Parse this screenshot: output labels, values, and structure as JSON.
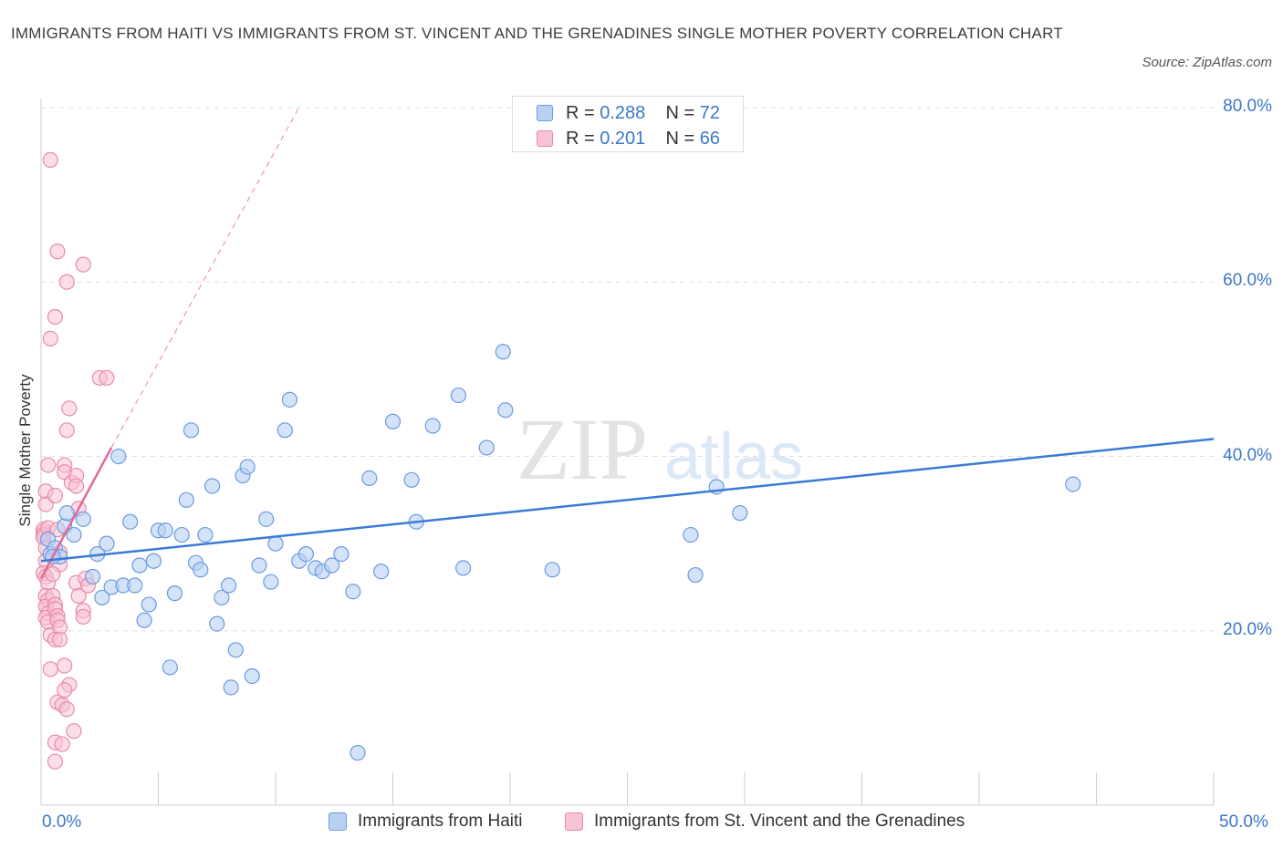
{
  "title": "IMMIGRANTS FROM HAITI VS IMMIGRANTS FROM ST. VINCENT AND THE GRENADINES SINGLE MOTHER POVERTY CORRELATION CHART",
  "source": "Source: ZipAtlas.com",
  "watermark": {
    "zip": "ZIP",
    "atlas": "atlas"
  },
  "colors": {
    "haiti_fill": "#b8d1f3",
    "haiti_stroke": "#6a9be0",
    "haiti_line": "#3a7bd5",
    "svg_fill": "#f8c3d3",
    "svg_stroke": "#ea8aa9",
    "svg_line": "#e26a97",
    "grid": "#dedede",
    "tick_text": "#3b78c9"
  },
  "legend": {
    "rows": [
      {
        "r_label": "R = ",
        "r_value": "0.288",
        "n_label": "N = ",
        "n_value": "72"
      },
      {
        "r_label": "R = ",
        "r_value": "0.201",
        "n_label": "N = ",
        "n_value": "66"
      }
    ]
  },
  "bottom_legend": [
    "Immigrants from Haiti",
    "Immigrants from St. Vincent and the Grenadines"
  ],
  "chart_data": {
    "type": "scatter",
    "title": "IMMIGRANTS FROM HAITI VS IMMIGRANTS FROM ST. VINCENT AND THE GRENADINES SINGLE MOTHER POVERTY CORRELATION CHART",
    "xlabel": "",
    "ylabel": "Single Mother Poverty",
    "xlim": [
      0,
      50
    ],
    "ylim": [
      0,
      80
    ],
    "x_tick_labels": [
      "0.0%",
      "50.0%"
    ],
    "y_ticks": [
      20,
      40,
      60,
      80
    ],
    "y_tick_labels": [
      "20.0%",
      "40.0%",
      "60.0%",
      "80.0%"
    ],
    "grid": true,
    "legend_position": "top-center",
    "series": [
      {
        "name": "Immigrants from Haiti",
        "R": 0.288,
        "N": 72,
        "trend": {
          "x": [
            0,
            50
          ],
          "y": [
            28.0,
            42.0
          ]
        },
        "points": [
          [
            0.3,
            30.5
          ],
          [
            0.4,
            28.8
          ],
          [
            0.6,
            29.5
          ],
          [
            0.8,
            28.5
          ],
          [
            1.0,
            32.0
          ],
          [
            1.1,
            33.5
          ],
          [
            1.4,
            31.0
          ],
          [
            1.8,
            32.8
          ],
          [
            2.2,
            26.2
          ],
          [
            2.4,
            28.8
          ],
          [
            2.6,
            23.8
          ],
          [
            2.8,
            30.0
          ],
          [
            3.0,
            25.0
          ],
          [
            3.3,
            40.0
          ],
          [
            3.5,
            25.2
          ],
          [
            3.8,
            32.5
          ],
          [
            4.0,
            25.2
          ],
          [
            4.2,
            27.5
          ],
          [
            4.4,
            21.2
          ],
          [
            4.6,
            23.0
          ],
          [
            4.8,
            28.0
          ],
          [
            5.0,
            31.5
          ],
          [
            5.3,
            31.5
          ],
          [
            5.5,
            15.8
          ],
          [
            5.7,
            24.3
          ],
          [
            6.0,
            31.0
          ],
          [
            6.2,
            35.0
          ],
          [
            6.4,
            43.0
          ],
          [
            6.6,
            27.8
          ],
          [
            6.8,
            27.0
          ],
          [
            7.0,
            31.0
          ],
          [
            7.3,
            36.6
          ],
          [
            7.5,
            20.8
          ],
          [
            7.7,
            23.8
          ],
          [
            8.0,
            25.2
          ],
          [
            8.3,
            17.8
          ],
          [
            8.6,
            37.8
          ],
          [
            8.8,
            38.8
          ],
          [
            9.0,
            14.8
          ],
          [
            9.3,
            27.5
          ],
          [
            9.6,
            32.8
          ],
          [
            9.8,
            25.6
          ],
          [
            10.0,
            30.0
          ],
          [
            10.4,
            43.0
          ],
          [
            10.6,
            46.5
          ],
          [
            11.0,
            28.0
          ],
          [
            11.3,
            28.8
          ],
          [
            11.7,
            27.2
          ],
          [
            12.0,
            26.8
          ],
          [
            12.4,
            27.5
          ],
          [
            12.8,
            28.8
          ],
          [
            13.3,
            24.5
          ],
          [
            13.5,
            6.0
          ],
          [
            14.0,
            37.5
          ],
          [
            14.5,
            26.8
          ],
          [
            15.0,
            44.0
          ],
          [
            15.8,
            37.3
          ],
          [
            16.0,
            32.5
          ],
          [
            16.7,
            43.5
          ],
          [
            17.8,
            47.0
          ],
          [
            18.0,
            27.2
          ],
          [
            19.0,
            41.0
          ],
          [
            19.7,
            52.0
          ],
          [
            19.8,
            45.3
          ],
          [
            21.8,
            27.0
          ],
          [
            27.7,
            31.0
          ],
          [
            27.9,
            26.4
          ],
          [
            28.8,
            36.5
          ],
          [
            29.8,
            33.5
          ],
          [
            44.0,
            36.8
          ],
          [
            8.1,
            13.5
          ],
          [
            0.5,
            28.5
          ]
        ]
      },
      {
        "name": "Immigrants from St. Vincent and the Grenadines",
        "R": 0.201,
        "N": 66,
        "trend": {
          "x": [
            0,
            3.0
          ],
          "y": [
            26.0,
            41.0
          ]
        },
        "trend_dashed": {
          "x": [
            3.0,
            11.0
          ],
          "y": [
            41.0,
            80.0
          ]
        },
        "points": [
          [
            0.1,
            31.3
          ],
          [
            0.1,
            31.6
          ],
          [
            0.1,
            31.0
          ],
          [
            0.1,
            30.7
          ],
          [
            0.2,
            36.0
          ],
          [
            0.2,
            34.5
          ],
          [
            0.3,
            31.8
          ],
          [
            0.2,
            29.5
          ],
          [
            0.2,
            28.0
          ],
          [
            0.1,
            26.6
          ],
          [
            0.2,
            26.2
          ],
          [
            0.3,
            25.5
          ],
          [
            0.2,
            24.0
          ],
          [
            0.3,
            23.5
          ],
          [
            0.2,
            22.8
          ],
          [
            0.3,
            22.0
          ],
          [
            0.2,
            21.5
          ],
          [
            0.3,
            21.0
          ],
          [
            0.4,
            19.5
          ],
          [
            0.4,
            15.6
          ],
          [
            0.3,
            39.0
          ],
          [
            0.4,
            53.5
          ],
          [
            0.6,
            56.0
          ],
          [
            0.7,
            63.5
          ],
          [
            1.1,
            60.0
          ],
          [
            0.6,
            35.5
          ],
          [
            0.7,
            31.6
          ],
          [
            0.8,
            29.0
          ],
          [
            0.8,
            27.6
          ],
          [
            0.5,
            26.5
          ],
          [
            0.5,
            24.0
          ],
          [
            0.6,
            23.0
          ],
          [
            0.6,
            22.5
          ],
          [
            0.7,
            21.7
          ],
          [
            0.7,
            21.2
          ],
          [
            0.8,
            20.4
          ],
          [
            0.6,
            19.0
          ],
          [
            0.8,
            19.0
          ],
          [
            1.0,
            39.0
          ],
          [
            1.0,
            38.2
          ],
          [
            1.1,
            43.0
          ],
          [
            1.2,
            45.5
          ],
          [
            1.3,
            37.0
          ],
          [
            1.5,
            37.8
          ],
          [
            1.5,
            36.6
          ],
          [
            1.6,
            34.0
          ],
          [
            1.5,
            25.5
          ],
          [
            1.6,
            24.0
          ],
          [
            1.8,
            22.3
          ],
          [
            1.8,
            21.6
          ],
          [
            1.8,
            62.0
          ],
          [
            2.5,
            49.0
          ],
          [
            2.8,
            49.0
          ],
          [
            1.9,
            26.0
          ],
          [
            0.4,
            74.0
          ],
          [
            1.0,
            16.0
          ],
          [
            1.2,
            13.8
          ],
          [
            0.7,
            11.8
          ],
          [
            0.9,
            11.5
          ],
          [
            1.1,
            11.0
          ],
          [
            1.4,
            8.5
          ],
          [
            0.6,
            7.2
          ],
          [
            0.9,
            7.0
          ],
          [
            0.6,
            5.0
          ],
          [
            1.0,
            13.2
          ],
          [
            2.0,
            25.2
          ]
        ]
      }
    ]
  }
}
